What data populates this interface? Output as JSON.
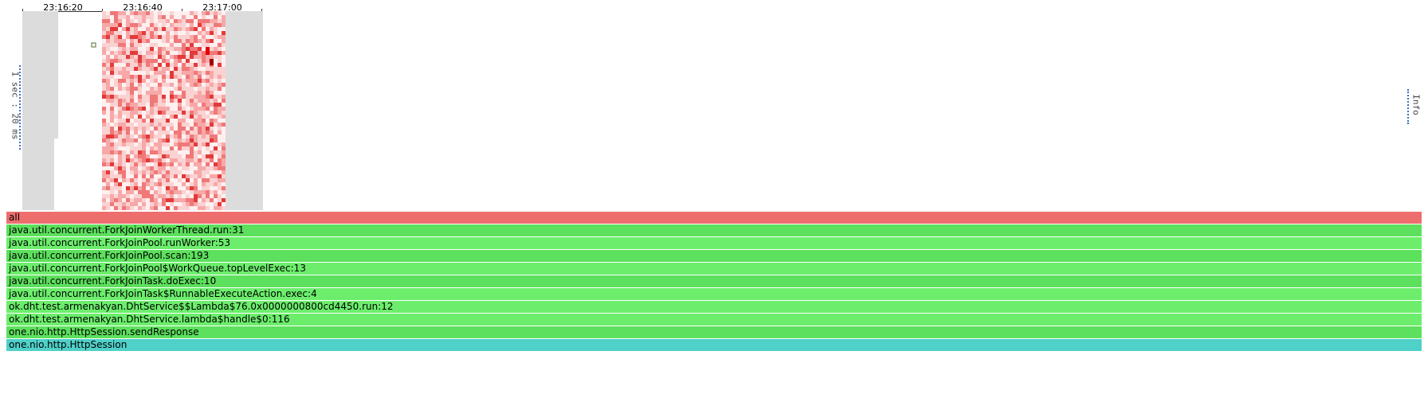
{
  "timeline": {
    "ticks": [
      "23:16:20",
      "23:16:40",
      "23:17:00"
    ]
  },
  "scale_label": "1 sec : 20 ms",
  "info_label": "Info",
  "colors": {
    "frame_all": "#ee6e6e",
    "frame_java": "#5de05d",
    "frame_java_alt": "#6cee6c",
    "frame_native": "#4fd0c8",
    "heat_empty": "#dcdcdc",
    "heat_hot": "#e60000"
  },
  "flamegraph": {
    "frames": [
      {
        "label": "all",
        "kind": "all"
      },
      {
        "label": "java.util.concurrent.ForkJoinWorkerThread.run:31",
        "kind": "java"
      },
      {
        "label": "java.util.concurrent.ForkJoinPool.runWorker:53",
        "kind": "java_alt"
      },
      {
        "label": "java.util.concurrent.ForkJoinPool.scan:193",
        "kind": "java"
      },
      {
        "label": "java.util.concurrent.ForkJoinPool$WorkQueue.topLevelExec:13",
        "kind": "java_alt"
      },
      {
        "label": "java.util.concurrent.ForkJoinTask.doExec:10",
        "kind": "java"
      },
      {
        "label": "java.util.concurrent.ForkJoinTask$RunnableExecuteAction.exec:4",
        "kind": "java_alt"
      },
      {
        "label": "ok.dht.test.armenakyan.DhtService$$Lambda$76.0x0000000800cd4450.run:12",
        "kind": "java_alt"
      },
      {
        "label": "ok.dht.test.armenakyan.DhtService.lambda$handle$0:116",
        "kind": "java_alt"
      },
      {
        "label": "one.nio.http.HttpSession.sendResponse",
        "kind": "java"
      },
      {
        "label": "one.nio.http.HttpSession",
        "kind": "native"
      }
    ]
  }
}
